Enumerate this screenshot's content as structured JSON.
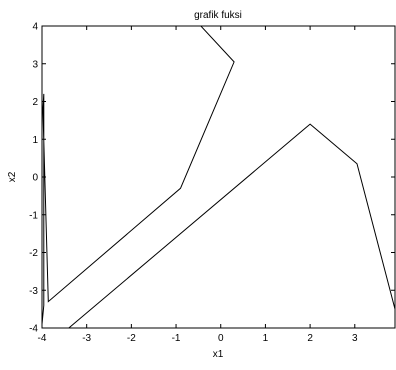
{
  "chart_data": {
    "type": "line",
    "title": "grafik fuksi",
    "xlabel": "x1",
    "ylabel": "x2",
    "xlim": [
      -4,
      3.9
    ],
    "ylim": [
      -4,
      4
    ],
    "xticks": [
      -4,
      -3,
      -2,
      -1,
      0,
      1,
      2,
      3
    ],
    "yticks": [
      -4,
      -3,
      -2,
      -1,
      0,
      1,
      2,
      3,
      4
    ],
    "grid": false,
    "series": [
      {
        "color": "#000000",
        "x": [
          -4.0,
          -3.96,
          -3.96,
          -3.96,
          -3.96,
          -3.98,
          -3.86,
          -0.9,
          0.3,
          -0.6
        ],
        "y": [
          -3.9,
          -3.4,
          -2.3,
          -2.0,
          2.2,
          1.8,
          -3.3,
          -0.3,
          3.05,
          4.2
        ]
      },
      {
        "color": "#000000",
        "x": [
          -3.4,
          2.0,
          3.05,
          3.9
        ],
        "y": [
          -4.0,
          1.4,
          0.35,
          -3.5
        ]
      },
      {
        "color": "#000000",
        "x": [
          -4.0,
          3.9
        ],
        "y": [
          -4.0,
          -4.0
        ]
      }
    ]
  }
}
